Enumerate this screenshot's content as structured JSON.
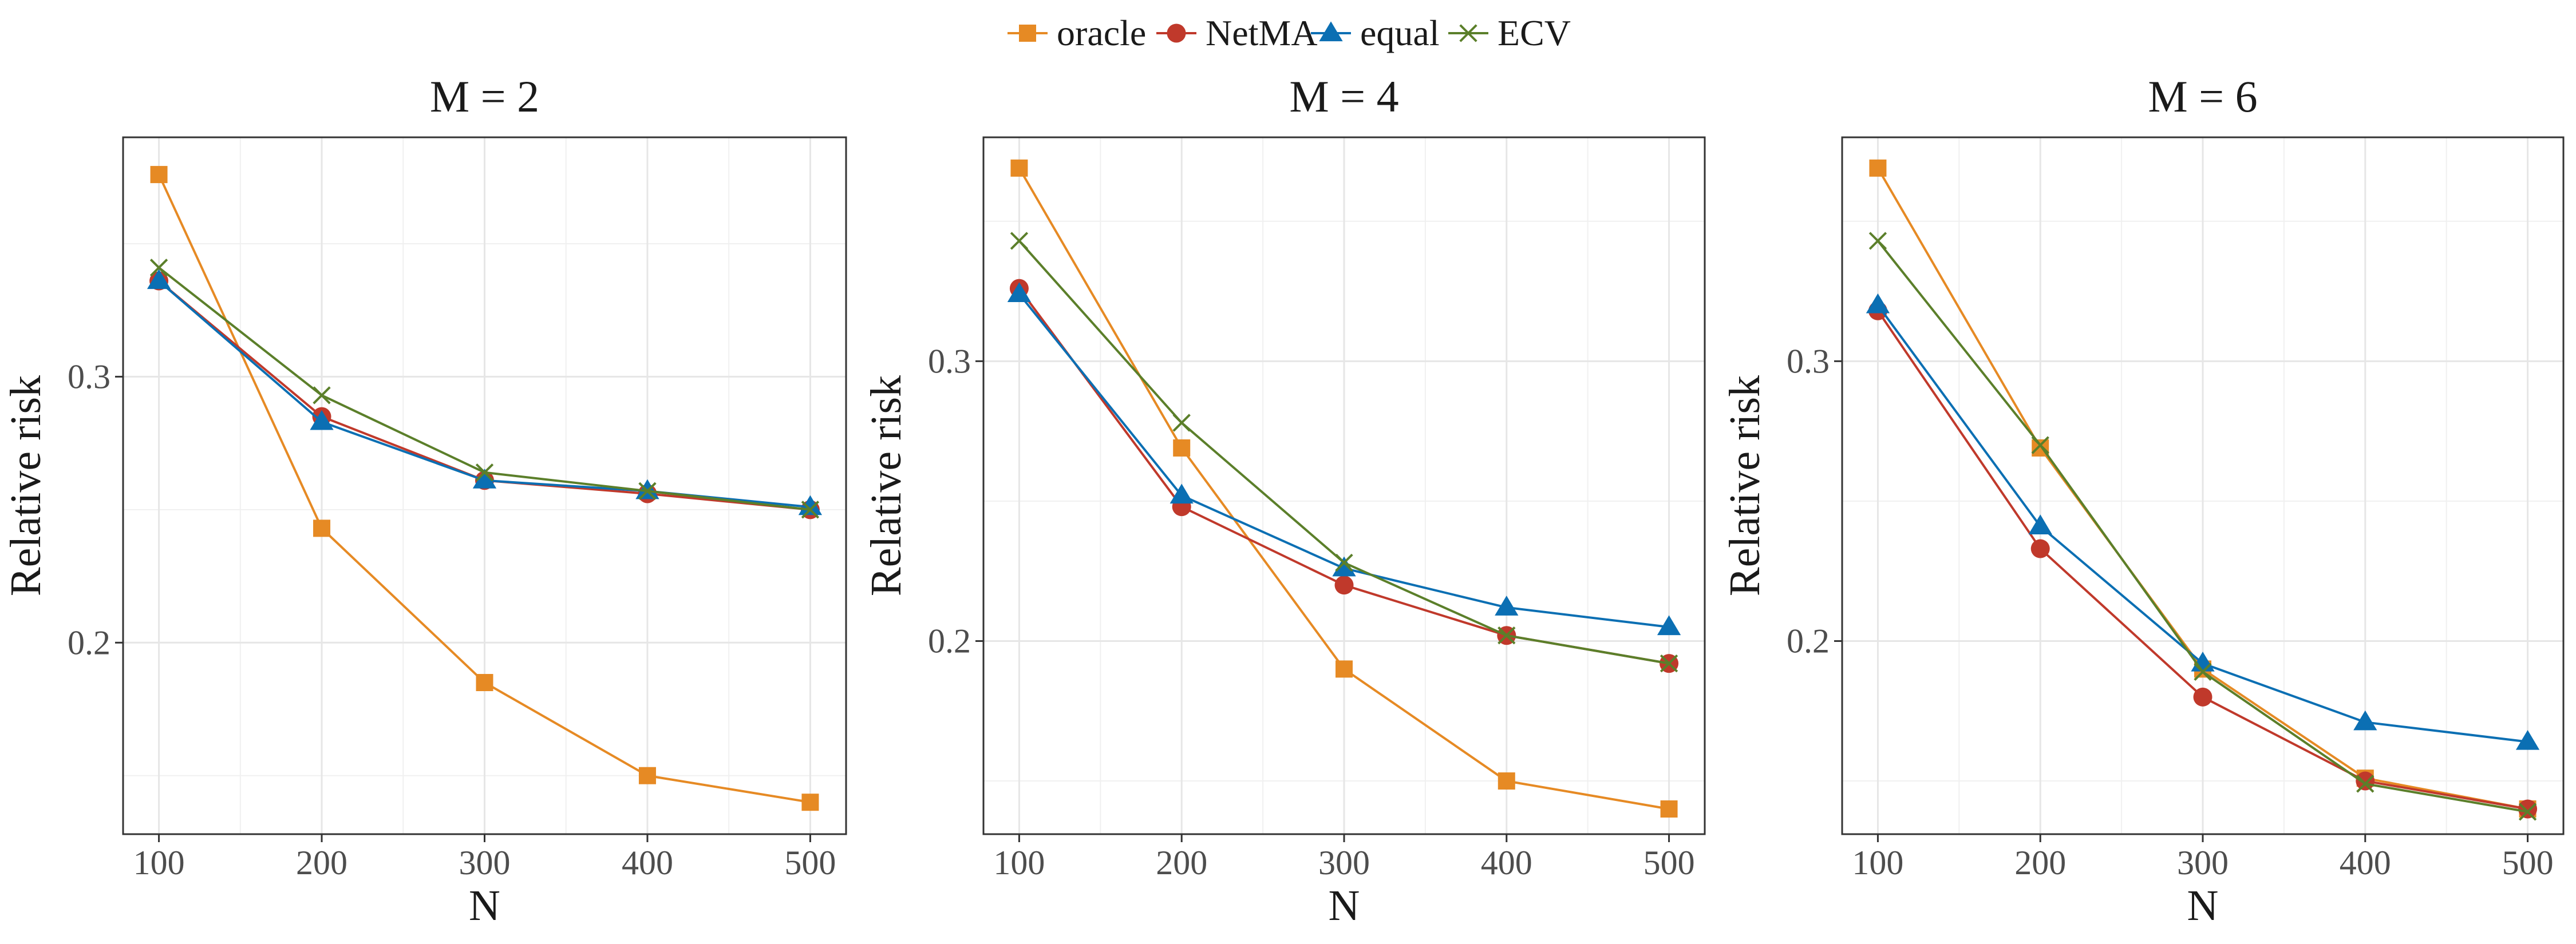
{
  "legend": {
    "items": [
      {
        "name": "oracle",
        "color": "#E68A24",
        "marker": "square"
      },
      {
        "name": "NetMA",
        "color": "#C0392B",
        "marker": "circle"
      },
      {
        "name": "equal",
        "color": "#0B6FB3",
        "marker": "triangle"
      },
      {
        "name": "ECV",
        "color": "#5B7F2A",
        "marker": "cross"
      }
    ],
    "placement": "top-center"
  },
  "chart_data": [
    {
      "type": "line",
      "title": "M = 2",
      "xlabel": "N",
      "ylabel": "Relative risk",
      "x": [
        100,
        200,
        300,
        400,
        500
      ],
      "xticks": [
        "100",
        "200",
        "300",
        "400",
        "500"
      ],
      "yticks": [
        0.2,
        0.3
      ],
      "ylim": [
        0.128,
        0.39
      ],
      "grid": true,
      "series": [
        {
          "name": "oracle",
          "values": [
            0.376,
            0.243,
            0.185,
            0.15,
            0.14
          ]
        },
        {
          "name": "NetMA",
          "values": [
            0.336,
            0.285,
            0.261,
            0.256,
            0.25
          ]
        },
        {
          "name": "equal",
          "values": [
            0.336,
            0.283,
            0.261,
            0.257,
            0.251
          ]
        },
        {
          "name": "ECV",
          "values": [
            0.341,
            0.293,
            0.264,
            0.257,
            0.25
          ]
        }
      ]
    },
    {
      "type": "line",
      "title": "M = 4",
      "xlabel": "N",
      "ylabel": "Relative risk",
      "x": [
        100,
        200,
        300,
        400,
        500
      ],
      "xticks": [
        "100",
        "200",
        "300",
        "400",
        "500"
      ],
      "yticks": [
        0.2,
        0.3
      ],
      "ylim": [
        0.131,
        0.38
      ],
      "grid": true,
      "series": [
        {
          "name": "oracle",
          "values": [
            0.369,
            0.269,
            0.19,
            0.15,
            0.14
          ]
        },
        {
          "name": "NetMA",
          "values": [
            0.326,
            0.248,
            0.22,
            0.202,
            0.192
          ]
        },
        {
          "name": "equal",
          "values": [
            0.324,
            0.252,
            0.226,
            0.212,
            0.205
          ]
        },
        {
          "name": "ECV",
          "values": [
            0.343,
            0.278,
            0.228,
            0.202,
            0.192
          ]
        }
      ]
    },
    {
      "type": "line",
      "title": "M = 6",
      "xlabel": "N",
      "ylabel": "Relative risk",
      "x": [
        100,
        200,
        300,
        400,
        500
      ],
      "xticks": [
        "100",
        "200",
        "300",
        "400",
        "500"
      ],
      "yticks": [
        0.2,
        0.3
      ],
      "ylim": [
        0.131,
        0.38
      ],
      "grid": true,
      "series": [
        {
          "name": "oracle",
          "values": [
            0.369,
            0.269,
            0.19,
            0.151,
            0.14
          ]
        },
        {
          "name": "NetMA",
          "values": [
            0.318,
            0.233,
            0.18,
            0.15,
            0.14
          ]
        },
        {
          "name": "equal",
          "values": [
            0.32,
            0.241,
            0.192,
            0.171,
            0.164
          ]
        },
        {
          "name": "ECV",
          "values": [
            0.343,
            0.27,
            0.189,
            0.149,
            0.139
          ]
        }
      ]
    }
  ]
}
